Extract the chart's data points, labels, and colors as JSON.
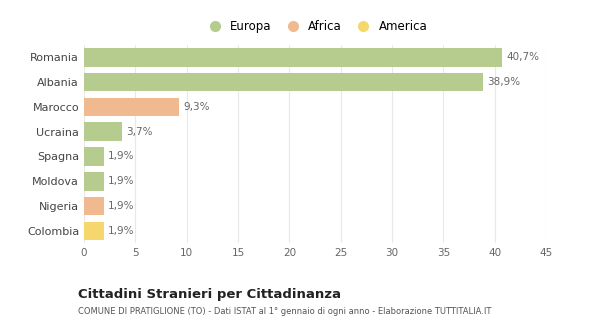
{
  "categories": [
    "Romania",
    "Albania",
    "Marocco",
    "Ucraina",
    "Spagna",
    "Moldova",
    "Nigeria",
    "Colombia"
  ],
  "values": [
    40.7,
    38.9,
    9.3,
    3.7,
    1.9,
    1.9,
    1.9,
    1.9
  ],
  "labels": [
    "40,7%",
    "38,9%",
    "9,3%",
    "3,7%",
    "1,9%",
    "1,9%",
    "1,9%",
    "1,9%"
  ],
  "colors": [
    "#b5cc8e",
    "#b5cc8e",
    "#f0b990",
    "#b5cc8e",
    "#b5cc8e",
    "#b5cc8e",
    "#f0b990",
    "#f5d76e"
  ],
  "legend_labels": [
    "Europa",
    "Africa",
    "America"
  ],
  "legend_colors": [
    "#b5cc8e",
    "#f0b990",
    "#f5d76e"
  ],
  "title": "Cittadini Stranieri per Cittadinanza",
  "subtitle": "COMUNE DI PRATIGLIONE (TO) - Dati ISTAT al 1° gennaio di ogni anno - Elaborazione TUTTITALIA.IT",
  "xlim": [
    0,
    45
  ],
  "xticks": [
    0,
    5,
    10,
    15,
    20,
    25,
    30,
    35,
    40,
    45
  ],
  "bg_color": "#ffffff",
  "grid_color": "#e8e8e8"
}
